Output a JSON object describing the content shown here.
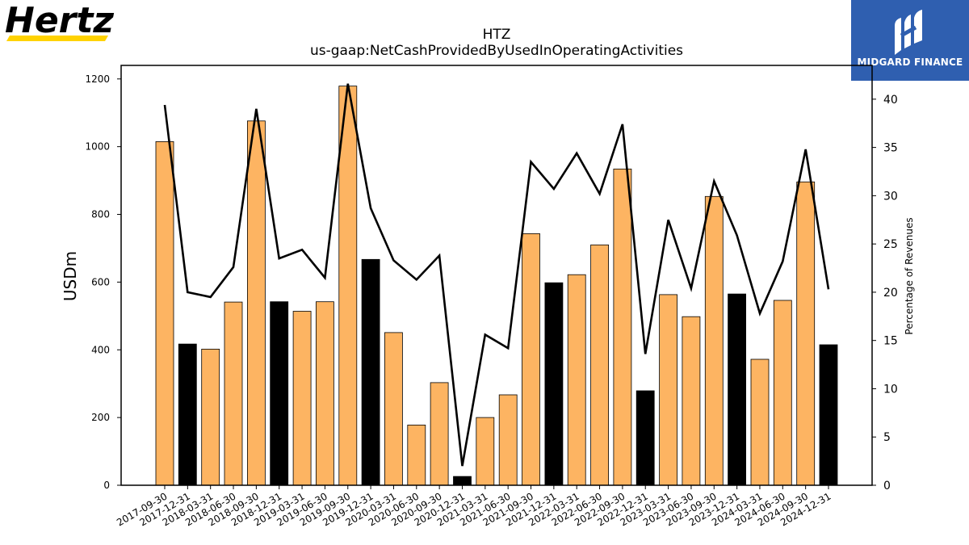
{
  "header": {
    "brand_logo_text": "Hertz",
    "brand_logo_icon": "hertz-logo",
    "publisher_name": "MIDGARD FINANCE",
    "publisher_icon": "midgard-finance-logo",
    "colors": {
      "publisher_bg": "#2f5fb0",
      "brand_stripe": "#ffd200"
    }
  },
  "chart_data": {
    "type": "bar",
    "title": "HTZ",
    "subtitle": "us-gaap:NetCashProvidedByUsedInOperatingActivities",
    "ylabel": "USDm",
    "y2label": "Percentage of Revenues",
    "ylim": [
      0,
      1240
    ],
    "y2lim": [
      0,
      43.5
    ],
    "yticks": [
      0,
      200,
      400,
      600,
      800,
      1000,
      1200
    ],
    "y2ticks": [
      0,
      5,
      10,
      15,
      20,
      25,
      30,
      35,
      40
    ],
    "categories": [
      "2017-09-30",
      "2017-12-31",
      "2018-03-31",
      "2018-06-30",
      "2018-09-30",
      "2018-12-31",
      "2019-03-31",
      "2019-06-30",
      "2019-09-30",
      "2019-12-31",
      "2020-03-31",
      "2020-06-30",
      "2020-09-30",
      "2020-12-31",
      "2021-03-31",
      "2021-06-30",
      "2021-09-30",
      "2021-12-31",
      "2022-03-31",
      "2022-06-30",
      "2022-09-30",
      "2022-12-31",
      "2023-03-31",
      "2023-06-30",
      "2023-09-30",
      "2023-12-31",
      "2024-03-31",
      "2024-06-30",
      "2024-09-30",
      "2024-12-31"
    ],
    "series": [
      {
        "type": "bar",
        "values": [
          1015,
          417,
          402,
          541,
          1076,
          542,
          514,
          542,
          1179,
          667,
          451,
          178,
          303,
          26,
          200,
          267,
          743,
          598,
          622,
          710,
          934,
          279,
          563,
          498,
          853,
          565,
          372,
          546,
          896,
          415
        ],
        "bar_colors": [
          "#fdb462",
          "#000000",
          "#fdb462",
          "#fdb462",
          "#fdb462",
          "#000000",
          "#fdb462",
          "#fdb462",
          "#fdb462",
          "#000000",
          "#fdb462",
          "#fdb462",
          "#fdb462",
          "#000000",
          "#fdb462",
          "#fdb462",
          "#fdb462",
          "#000000",
          "#fdb462",
          "#fdb462",
          "#fdb462",
          "#000000",
          "#fdb462",
          "#fdb462",
          "#fdb462",
          "#000000",
          "#fdb462",
          "#fdb462",
          "#fdb462",
          "#000000"
        ]
      },
      {
        "type": "line",
        "axis": "right",
        "color": "#000000",
        "values": [
          39.4,
          20.0,
          19.5,
          22.6,
          39.0,
          23.5,
          24.4,
          21.5,
          41.6,
          28.7,
          23.3,
          21.3,
          23.8,
          2.0,
          15.6,
          14.2,
          33.5,
          30.7,
          34.4,
          30.2,
          37.4,
          13.6,
          27.5,
          20.4,
          31.5,
          25.9,
          17.8,
          23.2,
          34.8,
          20.3
        ]
      }
    ],
    "grid": false,
    "legend": "none"
  }
}
